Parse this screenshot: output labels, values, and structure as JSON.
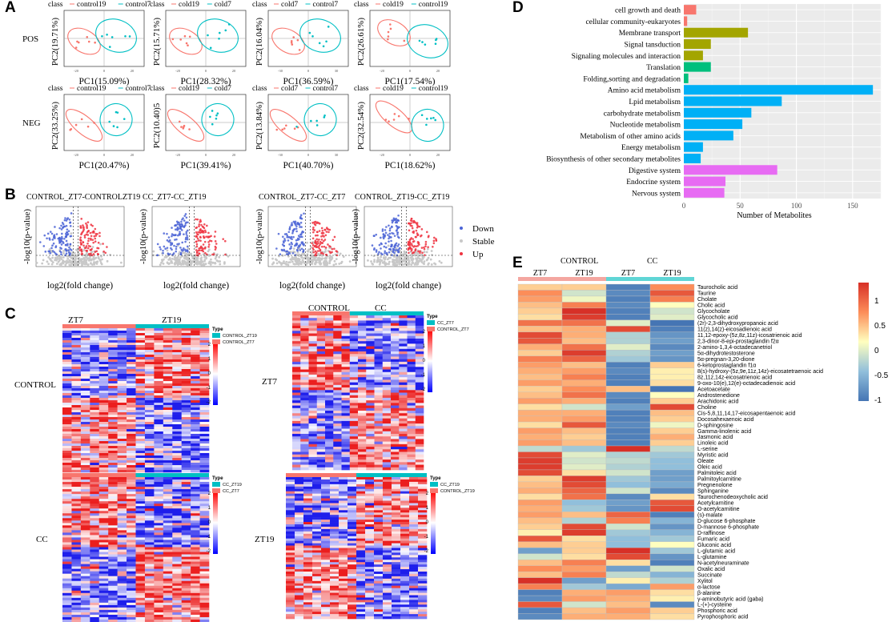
{
  "panel_labels": {
    "a": "A",
    "b": "B",
    "c": "C",
    "d": "D",
    "e": "E"
  },
  "colors": {
    "red": "#f8766d",
    "teal": "#00bfc4",
    "down": "#4b64d6",
    "up": "#ee3340",
    "stable": "#c8c8c8",
    "bar_magenta": "#e76bf3",
    "bar_olive": "#a3a500",
    "bar_green": "#00bf7d",
    "bar_blue": "#00b0f6",
    "bar_salmon": "#f8766d"
  },
  "pca": {
    "row_labels": [
      "POS",
      "NEG"
    ],
    "class_word": "class",
    "plots": [
      {
        "legend": [
          "control19",
          "control7"
        ],
        "ylabel": "PC2(19.71%)",
        "xlabel": "PC1(15.09%)",
        "xticks": [
          "-20",
          "0",
          "20"
        ]
      },
      {
        "legend": [
          "cold19",
          "cold7"
        ],
        "ylabel": "PC2(15.71%)",
        "xlabel": "PC1(28.32%)",
        "xticks": [
          "-20",
          "0",
          "20"
        ]
      },
      {
        "legend": [
          "cold7",
          "control7"
        ],
        "ylabel": "PC2(16.04%)",
        "xlabel": "PC1(36.59%)",
        "xticks": [
          "-30",
          "0",
          "30"
        ]
      },
      {
        "legend": [
          "cold19",
          "control19"
        ],
        "ylabel": "PC2(26.61%)",
        "xlabel": "PC1(17.54%)",
        "xticks": [
          "-20",
          "0",
          "20"
        ]
      },
      {
        "legend": [
          "control19",
          "control7"
        ],
        "ylabel": "PC2(33.25%)",
        "xlabel": "PC1(20.47%)",
        "xticks": [
          "-20",
          "0",
          "20"
        ]
      },
      {
        "legend": [
          "cold19",
          "cold7"
        ],
        "ylabel": "PC2(10.40)5",
        "xlabel": "PC1(39.41%)",
        "xticks": [
          "-20",
          "0",
          "20"
        ]
      },
      {
        "legend": [
          "cold7",
          "control7"
        ],
        "ylabel": "PC2(13.84%)",
        "xlabel": "PC1(40.70%)",
        "xticks": [
          "-30",
          "0",
          "30"
        ]
      },
      {
        "legend": [
          "cold19",
          "control19"
        ],
        "ylabel": "PC2(32.54%)",
        "xlabel": "PC1(18.62%)",
        "xticks": [
          "-20",
          "0",
          "20"
        ]
      }
    ]
  },
  "volcano": {
    "titles": [
      "CONTROL_ZT7-CONTROLZT19",
      "CC_ZT7-CC_ZT19",
      "CONTROL_ZT7-CC_ZT7",
      "CONTROL_ZT19-CC_ZT19"
    ],
    "ylabel": "-log10(p-value)",
    "xlabel": "log2(fold change)",
    "legend": [
      "Down",
      "Stable",
      "Up"
    ]
  },
  "heatmaps_c": {
    "col_headers": [
      "ZT7",
      "ZT19",
      "CONTROL",
      "CC"
    ],
    "row_labels": [
      "CONTROL",
      "CC",
      "ZT7",
      "ZT19"
    ],
    "legend_title": "Type",
    "scale_ticks": [
      "2",
      "1",
      "0",
      "-1",
      "-2"
    ],
    "legends": [
      [
        "CONTROL_ZT19",
        "CONTROL_ZT7"
      ],
      [
        "CC_ZT19",
        "CC_ZT7"
      ],
      [
        "CC_ZT7",
        "CONTROL_ZT7"
      ],
      [
        "CC_ZT19",
        "CONTROL_ZT19"
      ]
    ]
  },
  "chart_data": [
    {
      "type": "bar",
      "orientation": "horizontal",
      "panel": "D",
      "xlabel": "Number of Metabolites",
      "xticks": [
        "0",
        "50",
        "100",
        "150"
      ],
      "xlim": [
        0,
        175
      ],
      "categories": [
        "cell growth and death",
        "cellular community-eukaryotes",
        "Membrane transport",
        "Signal tansduction",
        "Signaling molecules and interaction",
        "Translation",
        "Folding,sorting and degradation",
        "Amino acid metabolism",
        "Lpid metabolism",
        "carbohydrate metabolism",
        "Nucleotide metabolism",
        "Metabolism of other amino acids",
        "Energy metabolism",
        "Biosynthesis of other secondary metabolites",
        "Digestive system",
        "Endocrine system",
        "Nervous system"
      ],
      "values": [
        11,
        3,
        57,
        24,
        17,
        24,
        4,
        168,
        87,
        60,
        52,
        44,
        17,
        15,
        83,
        37,
        36
      ],
      "groups": [
        "salmon",
        "salmon",
        "olive",
        "olive",
        "olive",
        "green",
        "green",
        "blue",
        "blue",
        "blue",
        "blue",
        "blue",
        "blue",
        "blue",
        "magenta",
        "magenta",
        "magenta"
      ]
    },
    {
      "type": "heatmap",
      "panel": "E",
      "group_headers": [
        "CONTROL",
        "CC"
      ],
      "columns": [
        "ZT7",
        "ZT19",
        "ZT7",
        "ZT19"
      ],
      "scale_ticks": [
        "1",
        "0.5",
        "0",
        "-0.5",
        "-1"
      ],
      "rows": [
        "Taurocholic acid",
        "Taurine",
        "Cholate",
        "Cholic acid",
        "Glycocholate",
        "Glycocholic acid",
        "(2r)-2,3-dihydroxypropanoic acid",
        "11(z),14(z)-eicosadienoic acid",
        "11,12-epoxy-(5z,8z,11z)-icosatrienoic acid",
        "2,3-dinor-8-epi-prostaglandin f2α",
        "2-amino-1,3,4-octadecanetriol",
        "5α-dihydrotestosterone",
        "5α-pregnan-3,20-dione",
        "6-ketoprostaglandin f1α",
        "8(s)-hydroxy-(5z,9e,11z,14z)-eicosatetraenoic acid",
        "8z,11z,14z-eicosatrienoic acid",
        "9-oxo-10(e),12(e)-octadecadienoic acid",
        "Acetoacetate",
        "Androstenedione",
        "Arachidonic acid",
        "Choline",
        "Cis-5,8,11,14,17-eicosapentaenoic acid",
        "Docosahexaenoic acid",
        "D-sphingosine",
        "Gamma-linolenic acid",
        "Jasmonic acid",
        "Linoleic acid",
        "L-serine",
        "Myristic acid",
        "Oleate",
        "Oleic acid",
        "Palmitoleic acid",
        "Palmitoylcarnitine",
        "Pregnenolone",
        "Sphinganine",
        "Taurochenodeoxycholic acid",
        "Acetylcarnitine",
        "O-acetylcarnitine",
        "(s)-malate",
        "D-glucose 6-phosphate",
        "D-mannose 6-phosphate",
        "D-raffinose",
        "Fumaric acid",
        "Gluconic acid",
        "L-glutamic acid",
        "L-glutamine",
        "N-acetylneuraminate",
        "Oxalic acid",
        "Succinate",
        "Xylitol",
        "α-lactose",
        "β-alanine",
        "γ-aminobutyric acid (gaba)",
        "L-(+)-cysteine",
        "Phosphoric acid",
        "Pyrophosphoric acid"
      ],
      "values": [
        [
          0.3,
          0.3,
          -1.3,
          0.7
        ],
        [
          0.7,
          -0.3,
          -1.2,
          1.1
        ],
        [
          0.6,
          -0.1,
          -1.3,
          0.8
        ],
        [
          0.4,
          0.8,
          -1.2,
          0.0
        ],
        [
          0.3,
          1.4,
          -1.3,
          -0.3
        ],
        [
          0.2,
          1.3,
          -1.3,
          -0.2
        ],
        [
          0.9,
          0.9,
          -0.2,
          -1.4
        ],
        [
          0.4,
          0.5,
          1.2,
          -1.3
        ],
        [
          1.2,
          0.5,
          -0.5,
          -1.1
        ],
        [
          1.1,
          0.4,
          -0.5,
          -1.0
        ],
        [
          0.5,
          0.9,
          -0.2,
          -1.2
        ],
        [
          0.3,
          1.3,
          -0.5,
          -1.0
        ],
        [
          0.8,
          1.0,
          -0.6,
          -1.1
        ],
        [
          0.6,
          0.4,
          -1.3,
          0.3
        ],
        [
          0.5,
          0.6,
          -1.2,
          0.1
        ],
        [
          0.4,
          0.8,
          -1.3,
          0.1
        ],
        [
          0.6,
          0.5,
          -1.3,
          0.2
        ],
        [
          0.3,
          0.7,
          0.4,
          -1.4
        ],
        [
          0.4,
          0.9,
          -1.2,
          0.0
        ],
        [
          0.6,
          0.5,
          -1.3,
          0.3
        ],
        [
          0.2,
          -0.3,
          -1.0,
          1.2
        ],
        [
          0.5,
          0.5,
          -1.3,
          0.4
        ],
        [
          0.5,
          0.6,
          -1.3,
          0.3
        ],
        [
          0.2,
          1.1,
          -1.2,
          -0.1
        ],
        [
          0.6,
          0.4,
          -1.3,
          0.3
        ],
        [
          0.5,
          0.3,
          -1.3,
          0.5
        ],
        [
          0.6,
          0.4,
          -1.3,
          0.3
        ],
        [
          -0.4,
          -0.6,
          1.4,
          -0.4
        ],
        [
          1.2,
          -0.2,
          -0.5,
          -0.6
        ],
        [
          1.3,
          -0.3,
          -0.4,
          -0.7
        ],
        [
          1.3,
          -0.2,
          -0.5,
          -0.7
        ],
        [
          1.2,
          0.2,
          -0.3,
          -1.0
        ],
        [
          0.3,
          1.3,
          -0.6,
          -1.0
        ],
        [
          0.4,
          1.2,
          -0.7,
          -0.9
        ],
        [
          0.5,
          1.0,
          -0.3,
          -1.2
        ],
        [
          0.2,
          0.9,
          -1.2,
          0.2
        ],
        [
          0.6,
          -0.7,
          -1.0,
          1.1
        ],
        [
          0.5,
          -0.6,
          -1.1,
          1.2
        ],
        [
          0.6,
          0.4,
          1.0,
          -1.3
        ],
        [
          0.4,
          -0.5,
          0.8,
          -0.8
        ],
        [
          0.3,
          1.2,
          -0.3,
          -1.1
        ],
        [
          0.1,
          1.3,
          -0.6,
          -0.8
        ],
        [
          1.1,
          0.2,
          -0.7,
          -0.6
        ],
        [
          0.4,
          0.3,
          -0.7,
          0.0
        ],
        [
          -1.0,
          0.3,
          1.4,
          -0.6
        ],
        [
          -0.3,
          0.2,
          1.2,
          -1.1
        ],
        [
          0.4,
          0.8,
          0.2,
          -1.3
        ],
        [
          0.7,
          0.6,
          -1.0,
          -0.3
        ],
        [
          0.4,
          0.8,
          -0.4,
          -0.8
        ],
        [
          1.4,
          -1.0,
          0.1,
          -0.5
        ],
        [
          0.8,
          -0.6,
          -0.9,
          0.6
        ],
        [
          -1.3,
          0.5,
          0.6,
          0.2
        ],
        [
          -1.2,
          0.6,
          0.5,
          0.1
        ],
        [
          1.1,
          -0.3,
          0.4,
          -1.2
        ],
        [
          -1.3,
          0.4,
          0.6,
          0.3
        ],
        [
          -1.2,
          0.5,
          0.5,
          0.2
        ]
      ]
    }
  ]
}
